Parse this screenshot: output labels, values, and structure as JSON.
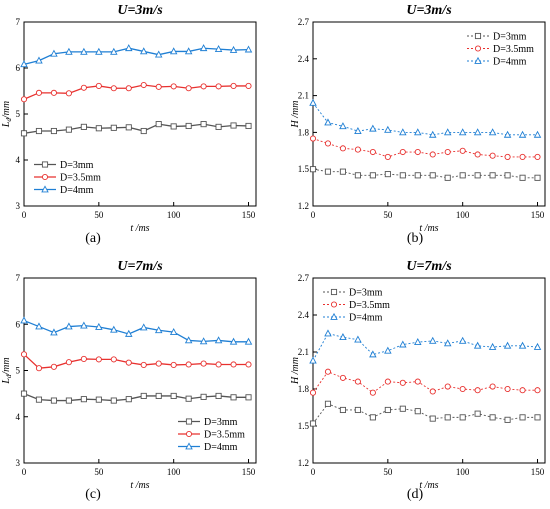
{
  "figure": {
    "captions": [
      "(a)",
      "(b)",
      "(c)",
      "(d)"
    ]
  },
  "chart_data": [
    {
      "type": "line",
      "title": "U=3m/s",
      "xlabel": "t /ms",
      "ylabel": "L_d /mm",
      "ylabel_main": "L",
      "ylabel_sub": "d",
      "ylabel_unit": "/mm",
      "xlim": [
        0,
        155
      ],
      "ylim": [
        3,
        7
      ],
      "xticks": [
        0,
        50,
        100,
        150
      ],
      "yticks": [
        3,
        4,
        5,
        6,
        7
      ],
      "grid": false,
      "legend_position": "bottom-left",
      "x": [
        0,
        10,
        20,
        30,
        40,
        50,
        60,
        70,
        80,
        90,
        100,
        110,
        120,
        130,
        140,
        150
      ],
      "series": [
        {
          "name": "D=3mm",
          "marker": "square",
          "color": "#555555",
          "values": [
            4.58,
            4.63,
            4.63,
            4.66,
            4.72,
            4.69,
            4.7,
            4.71,
            4.63,
            4.78,
            4.73,
            4.74,
            4.78,
            4.72,
            4.75,
            4.74
          ]
        },
        {
          "name": "D=3.5mm",
          "marker": "circle",
          "color": "#e8312f",
          "values": [
            5.32,
            5.46,
            5.46,
            5.45,
            5.57,
            5.61,
            5.56,
            5.56,
            5.63,
            5.59,
            5.6,
            5.56,
            5.6,
            5.6,
            5.61,
            5.61
          ]
        },
        {
          "name": "D=4mm",
          "marker": "triangle",
          "color": "#1f7fd4",
          "values": [
            6.08,
            6.16,
            6.31,
            6.35,
            6.35,
            6.35,
            6.35,
            6.43,
            6.36,
            6.29,
            6.36,
            6.36,
            6.43,
            6.41,
            6.39,
            6.4
          ]
        }
      ]
    },
    {
      "type": "line",
      "title": "U=3m/s",
      "xlabel": "t /ms",
      "ylabel": "H /mm",
      "ylabel_main": "H",
      "ylabel_sub": "",
      "ylabel_unit": " /mm",
      "xlim": [
        0,
        155
      ],
      "ylim": [
        1.2,
        2.7
      ],
      "xticks": [
        0,
        50,
        100,
        150
      ],
      "yticks": [
        1.2,
        1.5,
        1.8,
        2.1,
        2.4,
        2.7
      ],
      "grid": false,
      "legend_position": "top-right",
      "x": [
        0,
        10,
        20,
        30,
        40,
        50,
        60,
        70,
        80,
        90,
        100,
        110,
        120,
        130,
        140,
        150
      ],
      "series": [
        {
          "name": "D=3mm",
          "marker": "square",
          "color": "#555555",
          "values": [
            1.5,
            1.48,
            1.48,
            1.45,
            1.45,
            1.46,
            1.45,
            1.45,
            1.45,
            1.43,
            1.45,
            1.45,
            1.45,
            1.45,
            1.43,
            1.43
          ]
        },
        {
          "name": "D=3.5mm",
          "marker": "circle",
          "color": "#e8312f",
          "values": [
            1.75,
            1.71,
            1.67,
            1.66,
            1.64,
            1.6,
            1.64,
            1.64,
            1.62,
            1.64,
            1.65,
            1.62,
            1.61,
            1.6,
            1.6,
            1.6
          ]
        },
        {
          "name": "D=4mm",
          "marker": "triangle",
          "color": "#1f7fd4",
          "values": [
            2.04,
            1.88,
            1.85,
            1.81,
            1.83,
            1.82,
            1.8,
            1.8,
            1.78,
            1.8,
            1.8,
            1.8,
            1.8,
            1.78,
            1.78,
            1.78
          ]
        }
      ]
    },
    {
      "type": "line",
      "title": "U=7m/s",
      "xlabel": "t /ms",
      "ylabel": "L_d /mm",
      "ylabel_main": "L",
      "ylabel_sub": "d",
      "ylabel_unit": "/mm",
      "xlim": [
        0,
        155
      ],
      "ylim": [
        3,
        7
      ],
      "xticks": [
        0,
        50,
        100,
        150
      ],
      "yticks": [
        3,
        4,
        5,
        6,
        7
      ],
      "grid": false,
      "legend_position": "bottom-right",
      "x": [
        0,
        10,
        20,
        30,
        40,
        50,
        60,
        70,
        80,
        90,
        100,
        110,
        120,
        130,
        140,
        150
      ],
      "series": [
        {
          "name": "D=3mm",
          "marker": "square",
          "color": "#555555",
          "values": [
            4.5,
            4.37,
            4.35,
            4.35,
            4.38,
            4.37,
            4.35,
            4.38,
            4.45,
            4.45,
            4.45,
            4.39,
            4.43,
            4.45,
            4.42,
            4.42
          ]
        },
        {
          "name": "D=3.5mm",
          "marker": "circle",
          "color": "#e8312f",
          "values": [
            5.35,
            5.05,
            5.08,
            5.18,
            5.25,
            5.24,
            5.24,
            5.17,
            5.12,
            5.15,
            5.12,
            5.13,
            5.15,
            5.13,
            5.13,
            5.13
          ]
        },
        {
          "name": "D=4mm",
          "marker": "triangle",
          "color": "#1f7fd4",
          "values": [
            6.08,
            5.95,
            5.82,
            5.95,
            5.97,
            5.94,
            5.88,
            5.79,
            5.93,
            5.87,
            5.83,
            5.65,
            5.63,
            5.65,
            5.62,
            5.62
          ]
        }
      ]
    },
    {
      "type": "line",
      "title": "U=7m/s",
      "xlabel": "t /ms",
      "ylabel": "H /mm",
      "ylabel_main": "H",
      "ylabel_sub": "",
      "ylabel_unit": " /mm",
      "xlim": [
        0,
        155
      ],
      "ylim": [
        1.2,
        2.7
      ],
      "xticks": [
        0,
        50,
        100,
        150
      ],
      "yticks": [
        1.2,
        1.5,
        1.8,
        2.1,
        2.4,
        2.7
      ],
      "grid": false,
      "legend_position": "top-left",
      "x": [
        0,
        10,
        20,
        30,
        40,
        50,
        60,
        70,
        80,
        90,
        100,
        110,
        120,
        130,
        140,
        150
      ],
      "series": [
        {
          "name": "D=3mm",
          "marker": "square",
          "color": "#555555",
          "values": [
            1.52,
            1.68,
            1.63,
            1.63,
            1.57,
            1.63,
            1.64,
            1.62,
            1.56,
            1.57,
            1.57,
            1.6,
            1.57,
            1.55,
            1.57,
            1.57
          ]
        },
        {
          "name": "D=3.5mm",
          "marker": "circle",
          "color": "#e8312f",
          "values": [
            1.77,
            1.94,
            1.89,
            1.86,
            1.77,
            1.86,
            1.85,
            1.86,
            1.78,
            1.82,
            1.8,
            1.79,
            1.82,
            1.8,
            1.79,
            1.79
          ]
        },
        {
          "name": "D=4mm",
          "marker": "triangle",
          "color": "#1f7fd4",
          "values": [
            2.03,
            2.25,
            2.22,
            2.2,
            2.08,
            2.11,
            2.16,
            2.18,
            2.19,
            2.17,
            2.19,
            2.15,
            2.14,
            2.15,
            2.15,
            2.14
          ]
        }
      ]
    }
  ]
}
